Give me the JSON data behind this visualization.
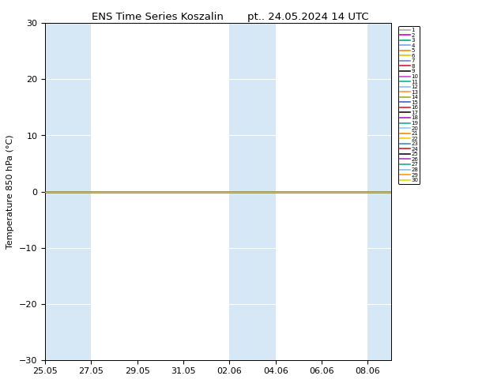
{
  "title_left": "ENS Time Series Koszalin",
  "title_right": "pt.. 24.05.2024 14 UTC",
  "ylabel": "Temperature 850 hPa (°C)",
  "ylim": [
    -30,
    30
  ],
  "yticks": [
    -30,
    -20,
    -10,
    0,
    10,
    20,
    30
  ],
  "xtick_labels": [
    "25.05",
    "27.05",
    "29.05",
    "31.05",
    "02.06",
    "04.06",
    "06.06",
    "08.06"
  ],
  "shaded_bands": [
    [
      0,
      2
    ],
    [
      2,
      4
    ],
    [
      8,
      10
    ],
    [
      10,
      12
    ],
    [
      14,
      16
    ]
  ],
  "shaded_colors": [
    "#d6e8f5",
    "#ffffff",
    "#d6e8f5",
    "#ffffff",
    "#d6e8f5"
  ],
  "zero_line_color": "#cccc00",
  "bg_color": "#ffffff",
  "shaded_color": "#d6e8f5",
  "n_members": 30,
  "member_colors": [
    "#aaaaaa",
    "#cc00cc",
    "#00aa88",
    "#66aaff",
    "#ff8800",
    "#cccc00",
    "#6688cc",
    "#cc2222",
    "#111111",
    "#cc44cc",
    "#00bb99",
    "#88bbff",
    "#ff9933",
    "#aaaa22",
    "#3366cc",
    "#dd2222",
    "#111111",
    "#aa22aa",
    "#22aa88",
    "#88ccff",
    "#ff8800",
    "#dddd00",
    "#4488cc",
    "#cc2222",
    "#111111",
    "#bb33bb",
    "#22aa88",
    "#88bbff",
    "#ff9900",
    "#dddd00"
  ],
  "member_value": 0.0,
  "legend_fontsize": 5.0,
  "title_fontsize": 9.5,
  "xlim": [
    0,
    15
  ],
  "xtick_positions": [
    0,
    2,
    4,
    6,
    8,
    10,
    12,
    14
  ]
}
